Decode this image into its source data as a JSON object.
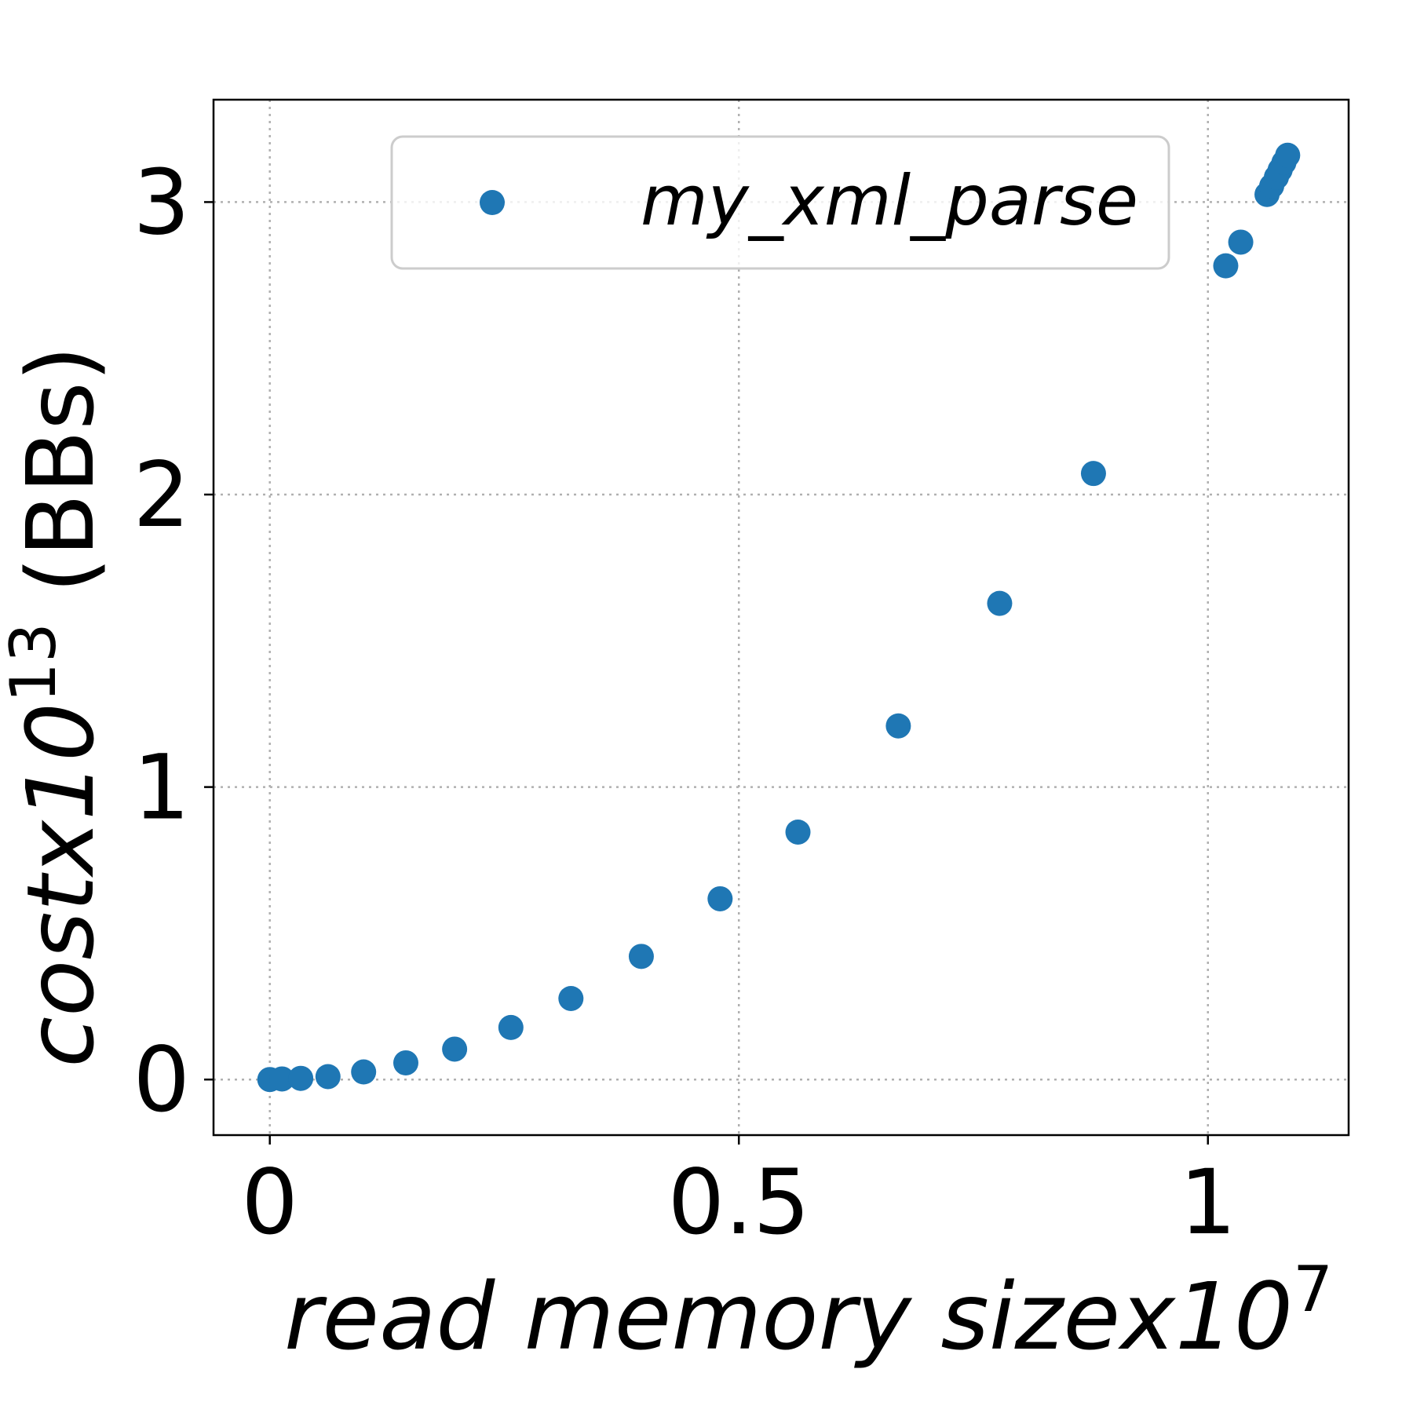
{
  "chart_data": {
    "type": "scatter",
    "title": "",
    "xlabel": {
      "text": "read memory size",
      "multiplier": "x10",
      "exponent": "7"
    },
    "ylabel": {
      "text": "cost",
      "multiplier": "x10",
      "exponent": "13",
      "unit": " (BBs)"
    },
    "xlim": [
      -0.06,
      1.15
    ],
    "ylim": [
      -0.19,
      3.35
    ],
    "xticks": [
      0,
      0.5,
      1
    ],
    "xtick_labels": [
      "0",
      "0.5",
      "1"
    ],
    "yticks": [
      0,
      1,
      2,
      3
    ],
    "ytick_labels": [
      "0",
      "1",
      "2",
      "3"
    ],
    "grid": true,
    "legend_position": "top-right",
    "colors": {
      "series": "#1f77b4",
      "frame": "#000000",
      "grid": "#b0b0b0"
    },
    "series": [
      {
        "name": "my_xml_parse",
        "color": "#1f77b4",
        "points": [
          [
            0.0,
            0.0
          ],
          [
            0.013,
            0.002
          ],
          [
            0.033,
            0.004
          ],
          [
            0.062,
            0.01
          ],
          [
            0.1,
            0.026
          ],
          [
            0.145,
            0.057
          ],
          [
            0.197,
            0.104
          ],
          [
            0.257,
            0.178
          ],
          [
            0.321,
            0.277
          ],
          [
            0.396,
            0.421
          ],
          [
            0.48,
            0.618
          ],
          [
            0.563,
            0.846
          ],
          [
            0.67,
            1.209
          ],
          [
            0.778,
            1.628
          ],
          [
            0.878,
            2.072
          ],
          [
            1.019,
            2.782
          ],
          [
            1.035,
            2.863
          ],
          [
            1.063,
            3.026
          ],
          [
            1.068,
            3.055
          ],
          [
            1.073,
            3.085
          ],
          [
            1.077,
            3.11
          ],
          [
            1.081,
            3.135
          ],
          [
            1.085,
            3.16
          ]
        ]
      }
    ]
  }
}
